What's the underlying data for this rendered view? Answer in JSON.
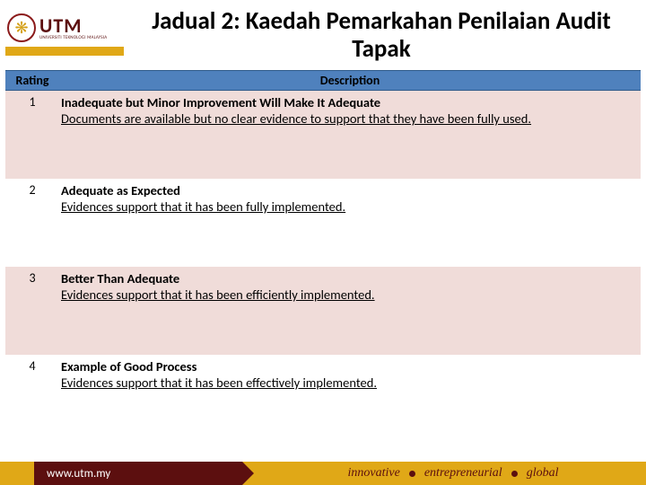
{
  "logo": {
    "main": "UTM",
    "sub": "UNIVERSITI TEKNOLOGI MALAYSIA",
    "glyph": "❋"
  },
  "title": "Jadual 2: Kaedah Pemarkahan Penilaian Audit Tapak",
  "table": {
    "columns": [
      "Rating",
      "Description"
    ],
    "rows": [
      {
        "rating": "1",
        "heading": "Inadequate but Minor Improvement Will Make It Adequate",
        "body": "Documents are available but no clear evidence to support that they have been fully used.",
        "bg": "odd"
      },
      {
        "rating": "2",
        "heading": "Adequate as Expected",
        "body": "Evidences support that it has been fully implemented.",
        "bg": "even"
      },
      {
        "rating": "3",
        "heading": "Better Than Adequate",
        "body": "Evidences support that it has been efficiently implemented.",
        "bg": "odd"
      },
      {
        "rating": "4",
        "heading": "Example of Good Process",
        "body": "Evidences support that it has been effectively implemented.",
        "bg": "even"
      }
    ]
  },
  "footer": {
    "url": "www.utm.my",
    "tags": [
      "innovative",
      "entrepreneurial",
      "global"
    ]
  },
  "colors": {
    "header_bg": "#4f81bd",
    "row_odd_bg": "#f0dcd9",
    "row_even_bg": "#ffffff",
    "gold": "#e0a817",
    "maroon": "#5c0f0f"
  }
}
